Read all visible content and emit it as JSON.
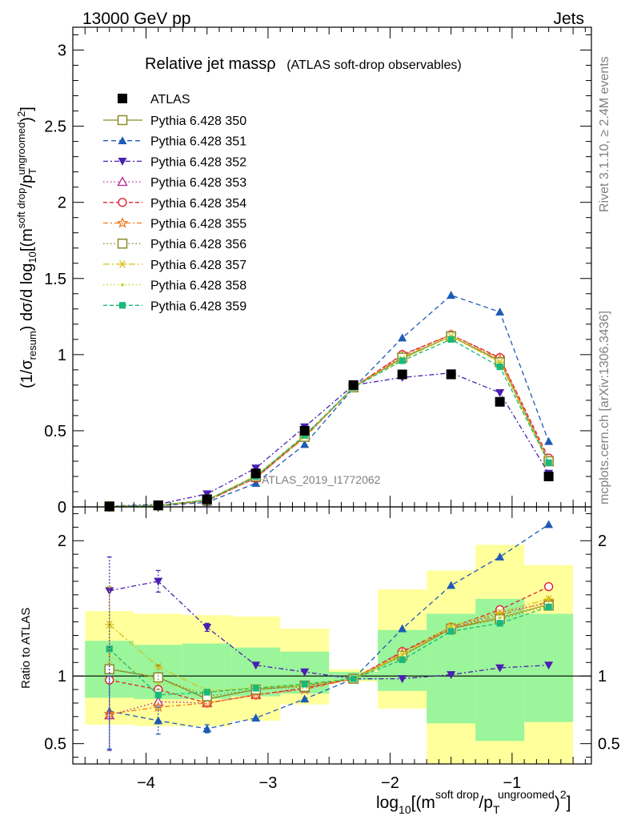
{
  "header": {
    "left": "13000 GeV pp",
    "right": "Jets"
  },
  "side_labels": {
    "rivet": "Rivet 3.1.10, ≥ 2.4M events",
    "mcplots": "mcplots.cern.ch [arXiv:1306.3436]"
  },
  "chart_data": {
    "type": "line",
    "title_main": "Relative jet massρ",
    "title_sub": "(ATLAS soft-drop observables)",
    "watermark": "ATLAS_2019_I1772062",
    "xlabel": {
      "p1": "log",
      "p1sub": "10",
      "p2": "[(m",
      "p2sup": "soft drop",
      "p3": "/p",
      "p3sub": "T",
      "p3sup": "ungroomed",
      "p4": ")",
      "p4sup": "2",
      "p5": "]"
    },
    "ylabel": {
      "p1": "(1/σ",
      "p1sub": "resum",
      "p2": ") dσ/d log",
      "p2sub": "10",
      "p3": "[(m",
      "p3sup": "soft drop",
      "p4": "/p",
      "p4sub": "T",
      "p4sup": "ungroomed",
      "p5": ")",
      "p5sup": "2",
      "p6": "]"
    },
    "ratio_ylabel": "Ratio to ATLAS",
    "xlim": [
      -4.6,
      -0.35
    ],
    "ylim": [
      0,
      3.15
    ],
    "ratio_ylim": [
      0.35,
      2.25
    ],
    "x_ticks": [
      -4,
      -3,
      -2,
      -1
    ],
    "x_tick_labels": [
      "−4",
      "−3",
      "−2",
      "−1"
    ],
    "y_ticks": [
      0,
      0.5,
      1,
      1.5,
      2,
      2.5,
      3
    ],
    "y_tick_labels": [
      "0",
      "0.5",
      "1",
      "1.5",
      "2",
      "2.5",
      "3"
    ],
    "ratio_ticks": [
      0.5,
      1,
      2
    ],
    "ratio_tick_labels": [
      "0.5",
      "1",
      "2"
    ],
    "bin_edges": [
      -4.5,
      -4.1,
      -3.7,
      -3.3,
      -2.9,
      -2.5,
      -2.1,
      -1.7,
      -1.3,
      -0.9,
      -0.5
    ],
    "x": [
      -4.3,
      -3.9,
      -3.5,
      -3.1,
      -2.7,
      -2.3,
      -1.9,
      -1.5,
      -1.1,
      -0.7
    ],
    "atlas": {
      "name": "ATLAS",
      "values": [
        0.003,
        0.01,
        0.05,
        0.22,
        0.5,
        0.8,
        0.87,
        0.87,
        0.69,
        0.2
      ]
    },
    "band_yellow": [
      [
        0.64,
        1.48
      ],
      [
        0.63,
        1.46
      ],
      [
        0.63,
        1.45
      ],
      [
        0.67,
        1.44
      ],
      [
        0.79,
        1.35
      ],
      [
        0.96,
        1.05
      ],
      [
        0.76,
        1.64
      ],
      [
        0.35,
        1.78
      ],
      [
        0.35,
        1.97
      ],
      [
        0.35,
        1.82
      ]
    ],
    "band_green": [
      [
        0.84,
        1.26
      ],
      [
        0.83,
        1.23
      ],
      [
        0.83,
        1.24
      ],
      [
        0.85,
        1.21
      ],
      [
        0.87,
        1.18
      ],
      [
        0.97,
        1.03
      ],
      [
        0.89,
        1.34
      ],
      [
        0.65,
        1.46
      ],
      [
        0.52,
        1.57
      ],
      [
        0.66,
        1.46
      ]
    ],
    "series": [
      {
        "name": "Pythia 6.428 350",
        "color": "#8b8b2e",
        "dash": "",
        "marker": "square-open",
        "values": [
          0.003,
          0.01,
          0.045,
          0.2,
          0.465,
          0.785,
          0.98,
          1.12,
          0.96,
          0.3
        ],
        "ratio": [
          1.05,
          0.99,
          0.83,
          0.9,
          0.93,
          0.98,
          1.15,
          1.35,
          1.43,
          1.53
        ]
      },
      {
        "name": "Pythia 6.428 351",
        "color": "#1d5bb5",
        "dash": "6 4",
        "marker": "triangle-up",
        "values": [
          0.002,
          0.007,
          0.03,
          0.155,
          0.41,
          0.78,
          1.11,
          1.39,
          1.28,
          0.43
        ],
        "ratio": [
          0.74,
          0.67,
          0.61,
          0.69,
          0.83,
          0.98,
          1.35,
          1.67,
          1.88,
          2.12
        ]
      },
      {
        "name": "Pythia 6.428 352",
        "color": "#4b1fb2",
        "dash": "6 3 2 3",
        "marker": "triangle-down",
        "values": [
          0.005,
          0.017,
          0.085,
          0.255,
          0.525,
          0.8,
          0.85,
          0.88,
          0.75,
          0.22
        ],
        "ratio": [
          1.63,
          1.7,
          1.36,
          1.08,
          1.03,
          0.98,
          0.98,
          1.01,
          1.06,
          1.08
        ]
      },
      {
        "name": "Pythia 6.428 353",
        "color": "#b0268d",
        "dash": "1.5 3",
        "marker": "triangle-up-open",
        "values": [
          0.002,
          0.008,
          0.04,
          0.19,
          0.46,
          0.785,
          1.0,
          1.13,
          0.98,
          0.3
        ],
        "ratio": [
          0.71,
          0.81,
          0.8,
          0.86,
          0.91,
          0.98,
          1.18,
          1.35,
          1.47,
          1.54
        ]
      },
      {
        "name": "Pythia 6.428 354",
        "color": "#e0212c",
        "dash": "5 3",
        "marker": "circle-open",
        "values": [
          0.003,
          0.009,
          0.04,
          0.19,
          0.46,
          0.785,
          1.0,
          1.13,
          0.98,
          0.32
        ],
        "ratio": [
          0.97,
          0.9,
          0.8,
          0.86,
          0.91,
          0.98,
          1.18,
          1.36,
          1.49,
          1.66
        ]
      },
      {
        "name": "Pythia 6.428 355",
        "color": "#f07a1f",
        "dash": "6 3 2 3",
        "marker": "star-open",
        "values": [
          0.002,
          0.008,
          0.04,
          0.19,
          0.455,
          0.785,
          0.99,
          1.13,
          0.97,
          0.3
        ],
        "ratio": [
          0.72,
          0.77,
          0.8,
          0.86,
          0.9,
          0.98,
          1.17,
          1.35,
          1.45,
          1.55
        ]
      },
      {
        "name": "Pythia 6.428 356",
        "color": "#8b8b2e",
        "dash": "1.5 3",
        "marker": "square-open",
        "values": [
          0.003,
          0.009,
          0.045,
          0.2,
          0.46,
          0.785,
          0.98,
          1.12,
          0.95,
          0.3
        ],
        "ratio": [
          1.05,
          0.99,
          0.85,
          0.9,
          0.92,
          0.98,
          1.15,
          1.35,
          1.42,
          1.52
        ]
      },
      {
        "name": "Pythia 6.428 357",
        "color": "#d4c217",
        "dash": "8 3 2 3",
        "marker": "y-star",
        "values": [
          0.004,
          0.01,
          0.045,
          0.205,
          0.465,
          0.785,
          0.97,
          1.12,
          0.95,
          0.29
        ],
        "ratio": [
          1.38,
          1.07,
          0.89,
          0.91,
          0.93,
          0.98,
          1.16,
          1.37,
          1.47,
          1.57
        ]
      },
      {
        "name": "Pythia 6.428 358",
        "color": "#c6d21a",
        "dash": "1.5 3",
        "marker": "dot",
        "values": [
          0.003,
          0.01,
          0.045,
          0.205,
          0.47,
          0.785,
          0.97,
          1.12,
          0.95,
          0.29
        ],
        "ratio": [
          1.15,
          0.95,
          0.88,
          0.92,
          0.94,
          0.98,
          1.15,
          1.36,
          1.43,
          1.53
        ]
      },
      {
        "name": "Pythia 6.428 359",
        "color": "#19b97a",
        "dash": "5 3",
        "marker": "square-filled",
        "values": [
          0.003,
          0.009,
          0.045,
          0.2,
          0.47,
          0.785,
          0.96,
          1.1,
          0.92,
          0.29
        ],
        "ratio": [
          1.2,
          0.86,
          0.88,
          0.91,
          0.94,
          0.98,
          1.12,
          1.33,
          1.39,
          1.51
        ]
      }
    ],
    "ratio_errors": [
      {
        "series": 2,
        "bin": 0,
        "lo": 0.45,
        "hi": 1.88
      },
      {
        "series": 1,
        "bin": 0,
        "lo": 0.46,
        "hi": 1.0
      },
      {
        "series": 7,
        "bin": 0,
        "lo": 1.1,
        "hi": 1.66
      },
      {
        "series": 2,
        "bin": 1,
        "lo": 1.62,
        "hi": 1.78
      },
      {
        "series": 1,
        "bin": 1,
        "lo": 0.57,
        "hi": 0.77
      },
      {
        "series": 0,
        "bin": 1,
        "lo": 0.9,
        "hi": 1.08
      },
      {
        "series": 1,
        "bin": 2,
        "lo": 0.58,
        "hi": 0.64
      },
      {
        "series": 2,
        "bin": 2,
        "lo": 1.33,
        "hi": 1.39
      }
    ]
  }
}
